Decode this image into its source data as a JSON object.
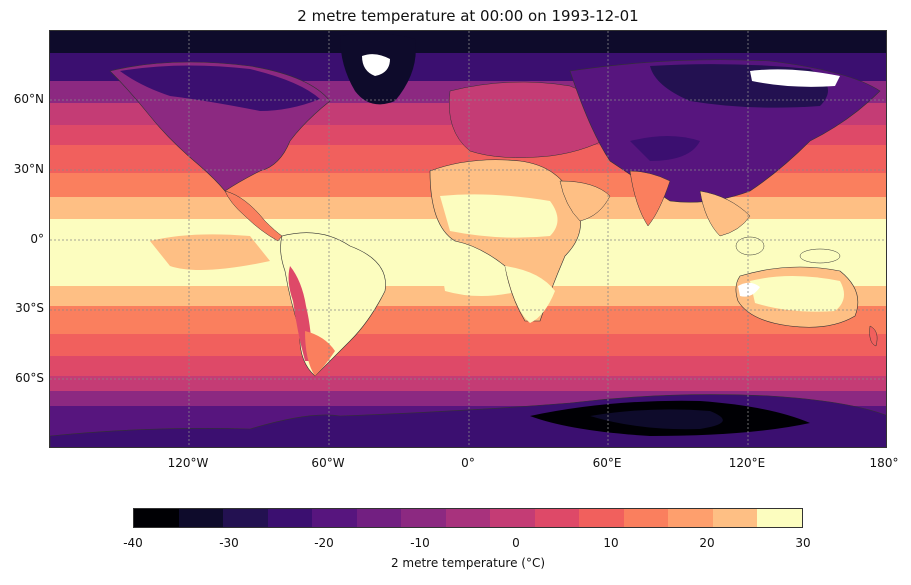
{
  "title": "2 metre temperature at 00:00 on 1993-12-01",
  "lat_labels": [
    "60°N",
    "30°N",
    "0°",
    "30°S",
    "60°S"
  ],
  "lon_labels": [
    "120°W",
    "60°W",
    "0°",
    "60°E",
    "120°E",
    "180°"
  ],
  "colorbar": {
    "label": "2 metre temperature (°C)",
    "tick_labels": [
      "-40",
      "-30",
      "-20",
      "-10",
      "0",
      "10",
      "20",
      "30"
    ],
    "min": -40,
    "max": 30,
    "step": 5,
    "colors": [
      "#000004",
      "#0e0b2b",
      "#231151",
      "#3b0f70",
      "#57157e",
      "#721f81",
      "#8c2981",
      "#a8327d",
      "#c43c75",
      "#de4968",
      "#f1605d",
      "#fa7f5e",
      "#fe9f6d",
      "#febf84",
      "#fcfdbf"
    ]
  }
}
